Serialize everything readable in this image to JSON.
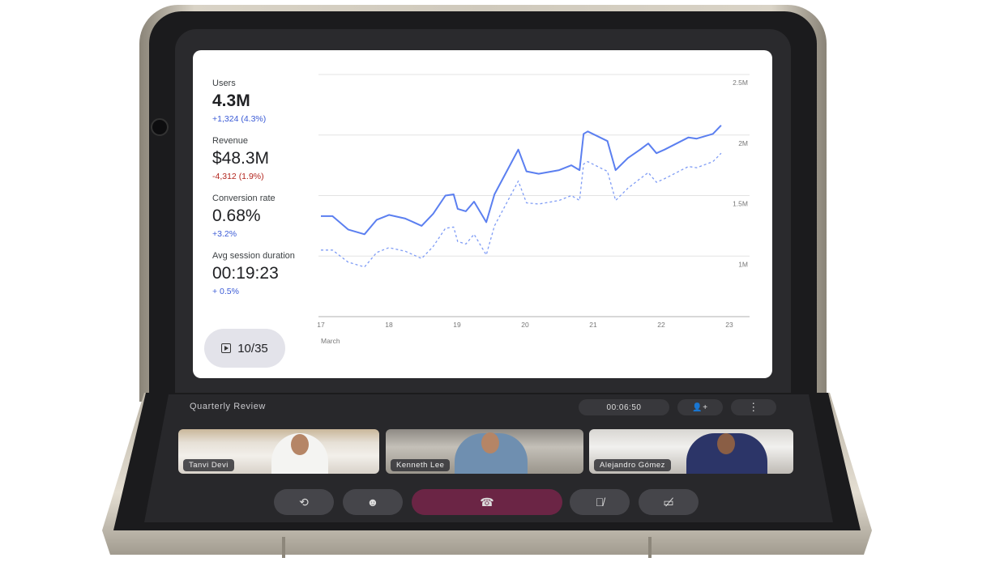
{
  "stats": [
    {
      "label": "Users",
      "value": "4.3M",
      "delta": "+1,324 (4.3%)",
      "trend": "up"
    },
    {
      "label": "Revenue",
      "value": "$48.3M",
      "delta": "-4,312 (1.9%)",
      "trend": "down"
    },
    {
      "label": "Conversion rate",
      "value": "0.68%",
      "delta": "+3.2%",
      "trend": "up"
    },
    {
      "label": "Avg session duration",
      "value": "00:19:23",
      "delta": "+ 0.5%",
      "trend": "up"
    }
  ],
  "slide_counter": "10/35",
  "chart_data": {
    "type": "line",
    "xlabel": "March",
    "x_ticks": [
      "17",
      "18",
      "19",
      "20",
      "21",
      "22",
      "23"
    ],
    "y_ticks": [
      "2.5M",
      "2M",
      "1.5M",
      "1M"
    ],
    "ylim": [
      0.5,
      2.5
    ],
    "xlim": [
      17,
      23
    ],
    "grid": true,
    "series": [
      {
        "style": "solid",
        "color": "#5b7ff0",
        "points": [
          [
            17.0,
            1.33
          ],
          [
            17.17,
            1.33
          ],
          [
            17.4,
            1.22
          ],
          [
            17.64,
            1.18
          ],
          [
            17.82,
            1.3
          ],
          [
            18.0,
            1.34
          ],
          [
            18.24,
            1.31
          ],
          [
            18.48,
            1.25
          ],
          [
            18.65,
            1.35
          ],
          [
            18.83,
            1.5
          ],
          [
            18.95,
            1.51
          ],
          [
            19.01,
            1.39
          ],
          [
            19.13,
            1.37
          ],
          [
            19.25,
            1.45
          ],
          [
            19.43,
            1.28
          ],
          [
            19.55,
            1.51
          ],
          [
            19.73,
            1.7
          ],
          [
            19.9,
            1.88
          ],
          [
            20.02,
            1.7
          ],
          [
            20.2,
            1.68
          ],
          [
            20.5,
            1.71
          ],
          [
            20.68,
            1.75
          ],
          [
            20.8,
            1.71
          ],
          [
            20.86,
            2.01
          ],
          [
            20.92,
            2.03
          ],
          [
            21.21,
            1.95
          ],
          [
            21.33,
            1.71
          ],
          [
            21.51,
            1.81
          ],
          [
            21.69,
            1.88
          ],
          [
            21.81,
            1.93
          ],
          [
            21.93,
            1.85
          ],
          [
            22.05,
            1.88
          ],
          [
            22.4,
            1.98
          ],
          [
            22.52,
            1.97
          ],
          [
            22.76,
            2.01
          ],
          [
            22.88,
            2.08
          ]
        ]
      },
      {
        "style": "dashed",
        "color": "#7f9cf5",
        "points": [
          [
            17.0,
            1.05
          ],
          [
            17.17,
            1.05
          ],
          [
            17.4,
            0.95
          ],
          [
            17.64,
            0.91
          ],
          [
            17.82,
            1.03
          ],
          [
            18.0,
            1.07
          ],
          [
            18.24,
            1.04
          ],
          [
            18.48,
            0.98
          ],
          [
            18.65,
            1.08
          ],
          [
            18.83,
            1.23
          ],
          [
            18.95,
            1.24
          ],
          [
            19.01,
            1.12
          ],
          [
            19.13,
            1.1
          ],
          [
            19.25,
            1.18
          ],
          [
            19.43,
            1.01
          ],
          [
            19.55,
            1.25
          ],
          [
            19.73,
            1.44
          ],
          [
            19.9,
            1.62
          ],
          [
            20.02,
            1.44
          ],
          [
            20.2,
            1.43
          ],
          [
            20.5,
            1.46
          ],
          [
            20.68,
            1.5
          ],
          [
            20.8,
            1.46
          ],
          [
            20.86,
            1.76
          ],
          [
            20.92,
            1.78
          ],
          [
            21.21,
            1.7
          ],
          [
            21.33,
            1.46
          ],
          [
            21.51,
            1.56
          ],
          [
            21.69,
            1.64
          ],
          [
            21.81,
            1.69
          ],
          [
            21.93,
            1.61
          ],
          [
            22.05,
            1.64
          ],
          [
            22.4,
            1.74
          ],
          [
            22.52,
            1.73
          ],
          [
            22.76,
            1.78
          ],
          [
            22.88,
            1.85
          ]
        ]
      }
    ]
  },
  "meeting": {
    "title": "Quarterly Review",
    "timer": "00:06:50",
    "add_person_icon": "person-add-icon",
    "more_icon": "more-vert-icon",
    "participants": [
      {
        "name": "Tanvi Devi"
      },
      {
        "name": "Kenneth Lee"
      },
      {
        "name": "Alejandro Gómez"
      }
    ],
    "controls": [
      "flip-camera-icon",
      "emoji-icon",
      "end-call-icon",
      "mic-off-icon",
      "video-off-icon"
    ],
    "end_call_color": "#6b2545"
  }
}
